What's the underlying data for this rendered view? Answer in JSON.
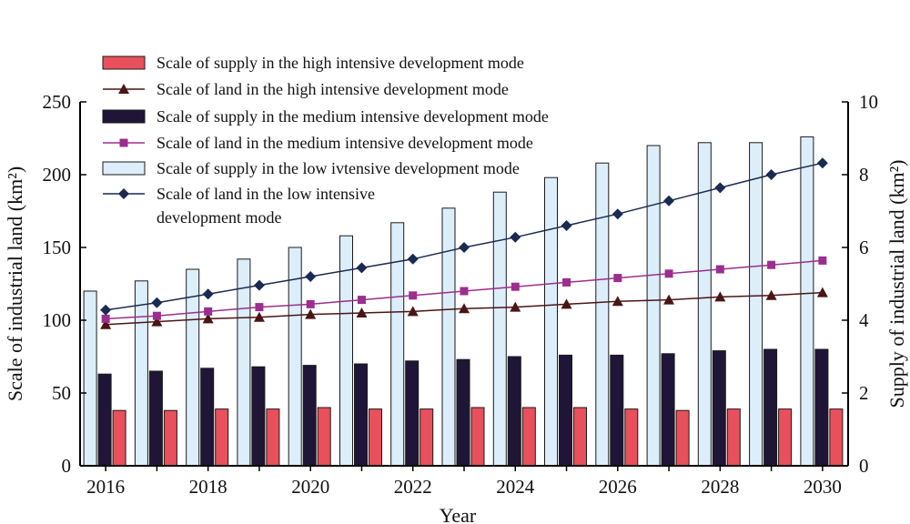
{
  "chart_data": {
    "type": "bar",
    "x": [
      "2016",
      "2017",
      "2018",
      "2019",
      "2020",
      "2021",
      "2022",
      "2023",
      "2024",
      "2025",
      "2026",
      "2027",
      "2028",
      "2029",
      "2030"
    ],
    "x_tick_labels": [
      "2016",
      "2018",
      "2020",
      "2022",
      "2024",
      "2026",
      "2028",
      "2030"
    ],
    "xlabel": "Year",
    "ylabel_left": "Scale of industrial land (km²)",
    "ylabel_right": "Supply of industrial land (km²)",
    "y_left_range": [
      0,
      250
    ],
    "y_left_ticks": [
      "0",
      "50",
      "100",
      "150",
      "200",
      "250"
    ],
    "y_right_range": [
      0,
      10
    ],
    "y_right_ticks": [
      "0",
      "2",
      "4",
      "6",
      "8",
      "10"
    ],
    "grid": false,
    "legend_position": "top-left",
    "series": [
      {
        "name": "Scale of supply in the high intensive development mode",
        "kind": "bar",
        "axis": "left",
        "color": "#e8505b",
        "values": [
          38,
          38,
          39,
          39,
          40,
          39,
          39,
          40,
          40,
          40,
          39,
          38,
          39,
          39,
          39
        ]
      },
      {
        "name": "Scale of land in the high intensive development mode",
        "kind": "line",
        "marker": "triangle",
        "axis": "left",
        "color": "#4a1515",
        "values": [
          97,
          99,
          101,
          102,
          104,
          105,
          106,
          108,
          109,
          111,
          113,
          114,
          116,
          117,
          119
        ]
      },
      {
        "name": "Scale of supply in the medium intensive development mode",
        "kind": "bar",
        "axis": "left",
        "color": "#1f1536",
        "values": [
          63,
          65,
          67,
          68,
          69,
          70,
          72,
          73,
          75,
          76,
          76,
          77,
          79,
          80,
          80
        ]
      },
      {
        "name": "Scale of land in the medium intensive development mode",
        "kind": "line",
        "marker": "square",
        "axis": "left",
        "color": "#9b2e8e",
        "values": [
          101,
          103,
          106,
          109,
          111,
          114,
          117,
          120,
          123,
          126,
          129,
          132,
          135,
          138,
          141
        ]
      },
      {
        "name": "Scale of supply in the low ivtensive development mode",
        "kind": "bar",
        "axis": "left",
        "color": "#ddeefb",
        "values": [
          120,
          127,
          135,
          142,
          150,
          158,
          167,
          177,
          188,
          198,
          208,
          220,
          222,
          222,
          226
        ]
      },
      {
        "name": "Scale of land in the low intensive development mode",
        "legend_lines": [
          "Scale of land in the low intensive",
          "development mode"
        ],
        "kind": "line",
        "marker": "diamond",
        "axis": "left",
        "color": "#1a2a52",
        "values": [
          107,
          112,
          118,
          124,
          130,
          136,
          142,
          150,
          157,
          165,
          173,
          182,
          191,
          200,
          208
        ]
      }
    ]
  }
}
